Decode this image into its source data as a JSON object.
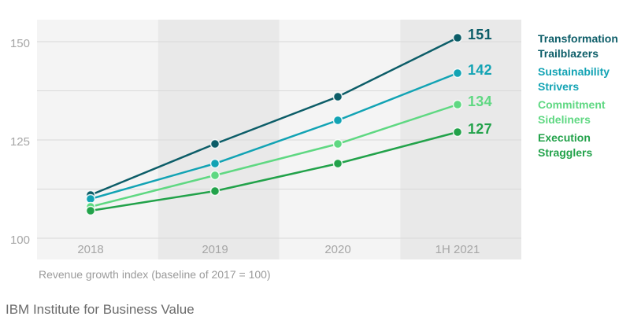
{
  "chart_data": {
    "type": "line",
    "title": "",
    "x_categories": [
      "2018",
      "2019",
      "2020",
      "1H 2021"
    ],
    "y_axis": {
      "min": 100,
      "max": 150,
      "tick_values": [
        150,
        125,
        100
      ],
      "tick_labels": [
        "150",
        "125",
        "100"
      ],
      "gridline_values": [
        150,
        137.5,
        125,
        112.5,
        100
      ]
    },
    "series": [
      {
        "name": "Transformation Trailblazers",
        "color": "#0c5d68",
        "values": [
          111,
          124,
          136,
          151
        ],
        "end_label": "151"
      },
      {
        "name": "Sustainability Strivers",
        "color": "#12a3b4",
        "values": [
          110,
          119,
          130,
          142
        ],
        "end_label": "142"
      },
      {
        "name": "Commitment Sideliners",
        "color": "#5fd882",
        "values": [
          108,
          116,
          124,
          134
        ],
        "end_label": "134"
      },
      {
        "name": "Execution Stragglers",
        "color": "#22a24a",
        "values": [
          107,
          112,
          119,
          127
        ],
        "end_label": "127"
      }
    ],
    "legend_position": "right",
    "grid": true,
    "band_colors": [
      "#f4f4f4",
      "#e9e9e9"
    ],
    "gridline_color": "#d9d9d9",
    "caption": "Revenue growth index (baseline of 2017 = 100)"
  },
  "colors": {
    "axis_labels": "#a6a6a6",
    "caption": "#9b9b9b",
    "footer": "#6b6b6b"
  },
  "footer": {
    "source": "IBM Institute for Business Value"
  }
}
